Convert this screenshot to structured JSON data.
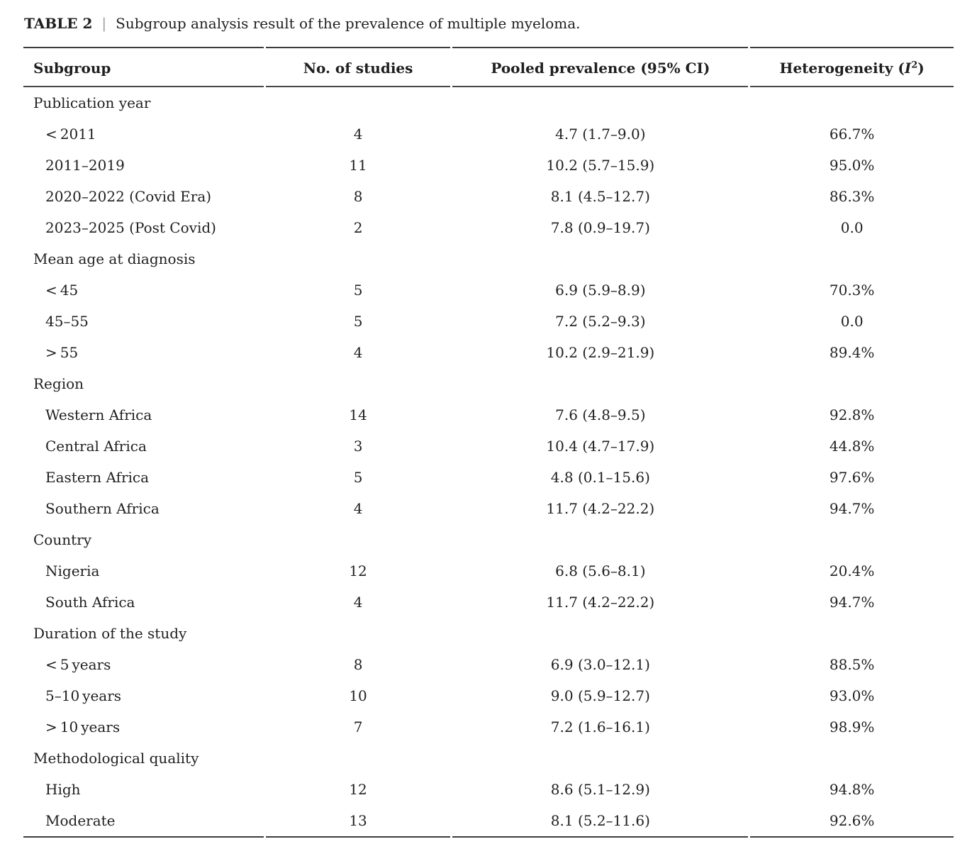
{
  "caption": {
    "label": "TABLE 2",
    "separator": "|",
    "text": "Subgroup analysis result of the prevalence of multiple myeloma."
  },
  "colors": {
    "text": "#1f1f1f",
    "rule": "#3c3c3c",
    "caption_separator": "#9a9a9a"
  },
  "table": {
    "columns": {
      "subgroup": "Subgroup",
      "studies": "No. of studies",
      "prevalence": "Pooled prevalence (95% CI)",
      "heterogeneity_prefix": "Heterogeneity (",
      "heterogeneity_symbol": "I",
      "heterogeneity_sup": "2",
      "heterogeneity_suffix": ")"
    },
    "sections": [
      {
        "name": "Publication year",
        "rows": [
          {
            "subgroup": "< 2011",
            "studies": "4",
            "prevalence": "4.7 (1.7–9.0)",
            "heterogeneity": "66.7%"
          },
          {
            "subgroup": "2011–2019",
            "studies": "11",
            "prevalence": "10.2 (5.7–15.9)",
            "heterogeneity": "95.0%"
          },
          {
            "subgroup": "2020–2022 (Covid Era)",
            "studies": "8",
            "prevalence": "8.1 (4.5–12.7)",
            "heterogeneity": "86.3%"
          },
          {
            "subgroup": "2023–2025 (Post Covid)",
            "studies": "2",
            "prevalence": "7.8 (0.9–19.7)",
            "heterogeneity": "0.0"
          }
        ]
      },
      {
        "name": "Mean age at diagnosis",
        "rows": [
          {
            "subgroup": "< 45",
            "studies": "5",
            "prevalence": "6.9 (5.9–8.9)",
            "heterogeneity": "70.3%"
          },
          {
            "subgroup": "45–55",
            "studies": "5",
            "prevalence": "7.2 (5.2–9.3)",
            "heterogeneity": "0.0"
          },
          {
            "subgroup": "> 55",
            "studies": "4",
            "prevalence": "10.2 (2.9–21.9)",
            "heterogeneity": "89.4%"
          }
        ]
      },
      {
        "name": "Region",
        "rows": [
          {
            "subgroup": "Western Africa",
            "studies": "14",
            "prevalence": "7.6 (4.8–9.5)",
            "heterogeneity": "92.8%"
          },
          {
            "subgroup": "Central Africa",
            "studies": "3",
            "prevalence": "10.4 (4.7–17.9)",
            "heterogeneity": "44.8%"
          },
          {
            "subgroup": "Eastern Africa",
            "studies": "5",
            "prevalence": "4.8 (0.1–15.6)",
            "heterogeneity": "97.6%"
          },
          {
            "subgroup": "Southern Africa",
            "studies": "4",
            "prevalence": "11.7 (4.2–22.2)",
            "heterogeneity": "94.7%"
          }
        ]
      },
      {
        "name": "Country",
        "rows": [
          {
            "subgroup": "Nigeria",
            "studies": "12",
            "prevalence": "6.8 (5.6–8.1)",
            "heterogeneity": "20.4%"
          },
          {
            "subgroup": "South Africa",
            "studies": "4",
            "prevalence": "11.7 (4.2–22.2)",
            "heterogeneity": "94.7%"
          }
        ]
      },
      {
        "name": "Duration of the study",
        "rows": [
          {
            "subgroup": "< 5 years",
            "studies": "8",
            "prevalence": "6.9 (3.0–12.1)",
            "heterogeneity": "88.5%"
          },
          {
            "subgroup": "5–10 years",
            "studies": "10",
            "prevalence": "9.0 (5.9–12.7)",
            "heterogeneity": "93.0%"
          },
          {
            "subgroup": "> 10 years",
            "studies": "7",
            "prevalence": "7.2 (1.6–16.1)",
            "heterogeneity": "98.9%"
          }
        ]
      },
      {
        "name": "Methodological quality",
        "rows": [
          {
            "subgroup": "High",
            "studies": "12",
            "prevalence": "8.6 (5.1–12.9)",
            "heterogeneity": "94.8%"
          },
          {
            "subgroup": "Moderate",
            "studies": "13",
            "prevalence": "8.1 (5.2–11.6)",
            "heterogeneity": "92.6%"
          }
        ]
      }
    ]
  }
}
